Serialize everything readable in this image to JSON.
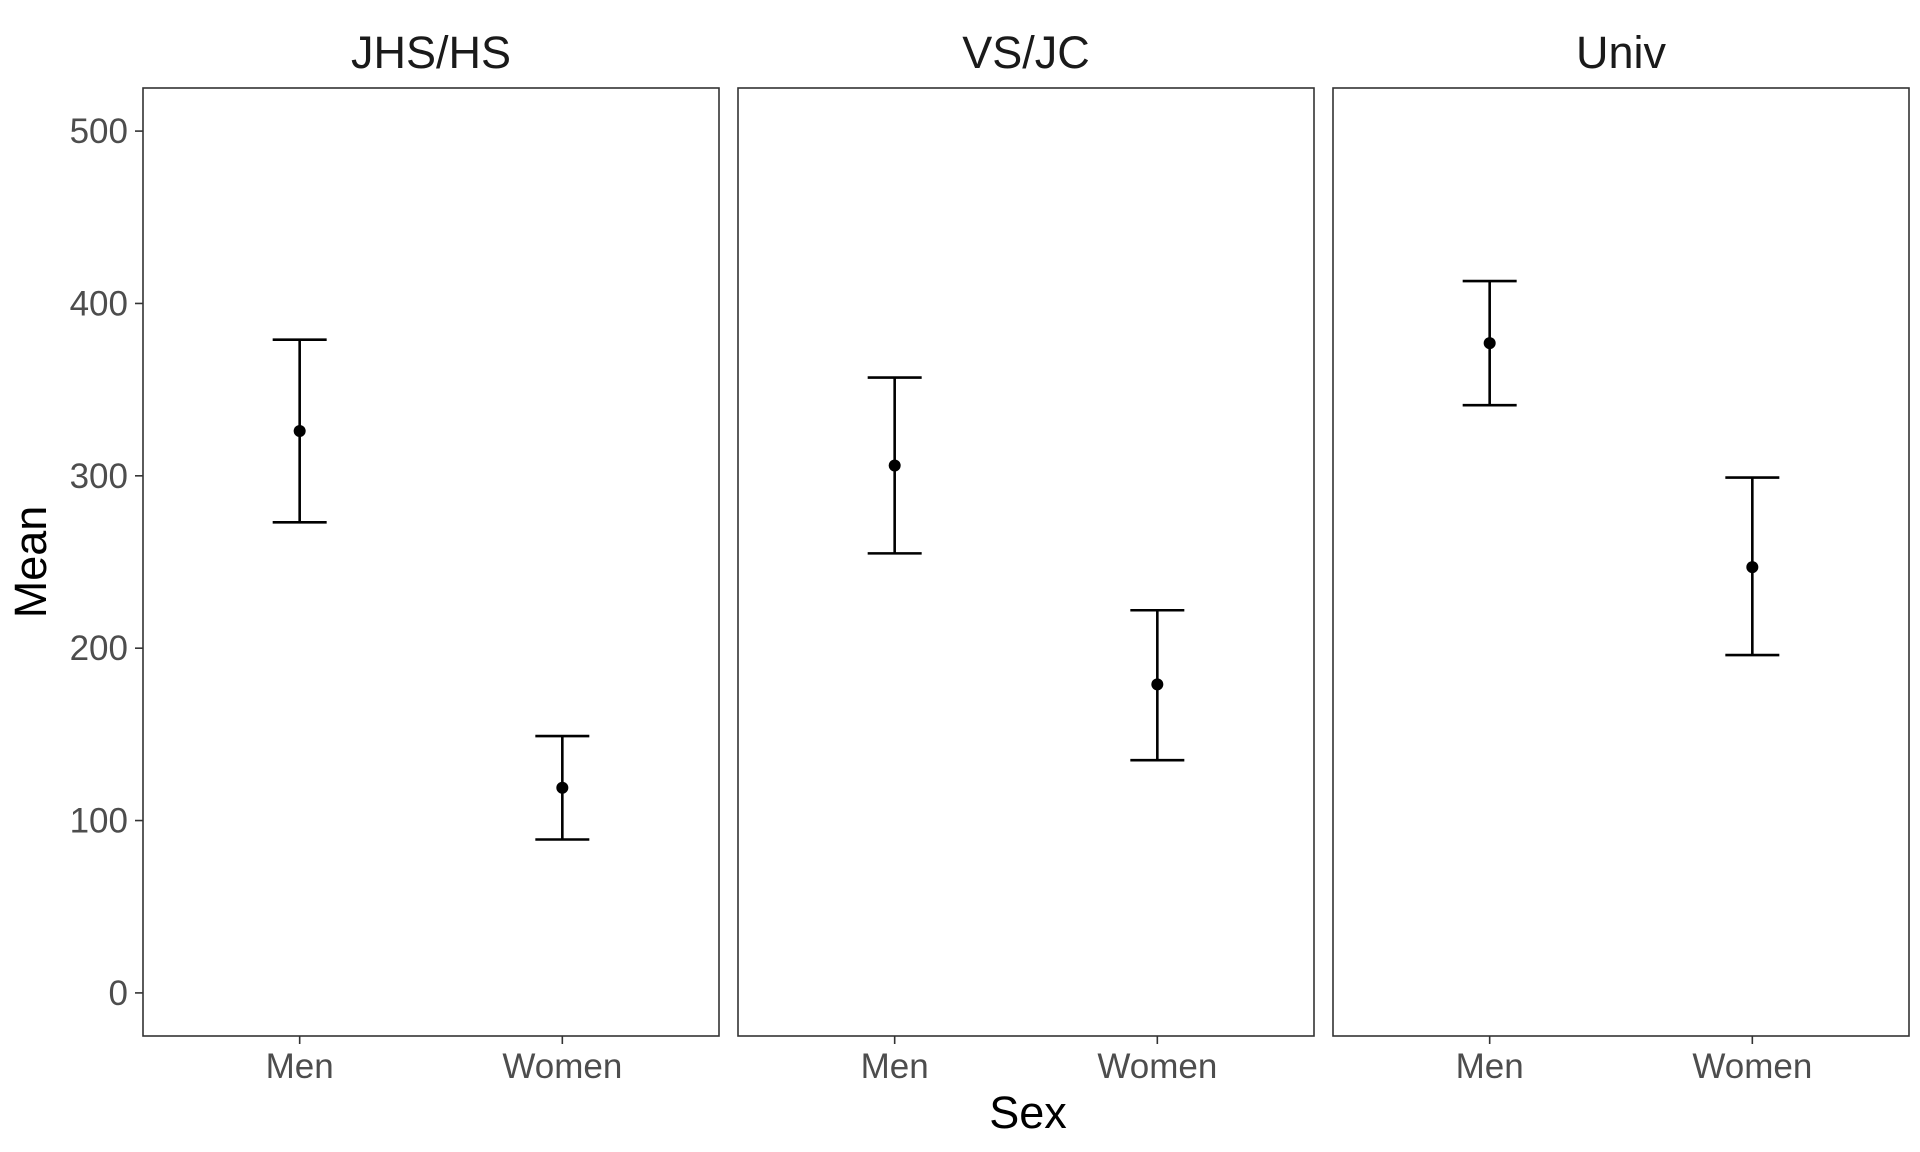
{
  "chart_data": {
    "type": "errorbar",
    "title": "",
    "xlabel": "Sex",
    "ylabel": "Mean",
    "ylim": [
      -25,
      525
    ],
    "y_ticks": [
      0,
      100,
      200,
      300,
      400,
      500
    ],
    "categories": [
      "Men",
      "Women"
    ],
    "grid": false,
    "legend": "none",
    "panels": [
      {
        "label": "JHS/HS",
        "points": [
          {
            "x": "Men",
            "mean": 326,
            "lower": 273,
            "upper": 379
          },
          {
            "x": "Women",
            "mean": 119,
            "lower": 89,
            "upper": 149
          }
        ]
      },
      {
        "label": "VS/JC",
        "points": [
          {
            "x": "Men",
            "mean": 306,
            "lower": 255,
            "upper": 357
          },
          {
            "x": "Women",
            "mean": 179,
            "lower": 135,
            "upper": 222
          }
        ]
      },
      {
        "label": "Univ",
        "points": [
          {
            "x": "Men",
            "mean": 377,
            "lower": 341,
            "upper": 413
          },
          {
            "x": "Women",
            "mean": 247,
            "lower": 196,
            "upper": 299
          }
        ]
      }
    ]
  }
}
